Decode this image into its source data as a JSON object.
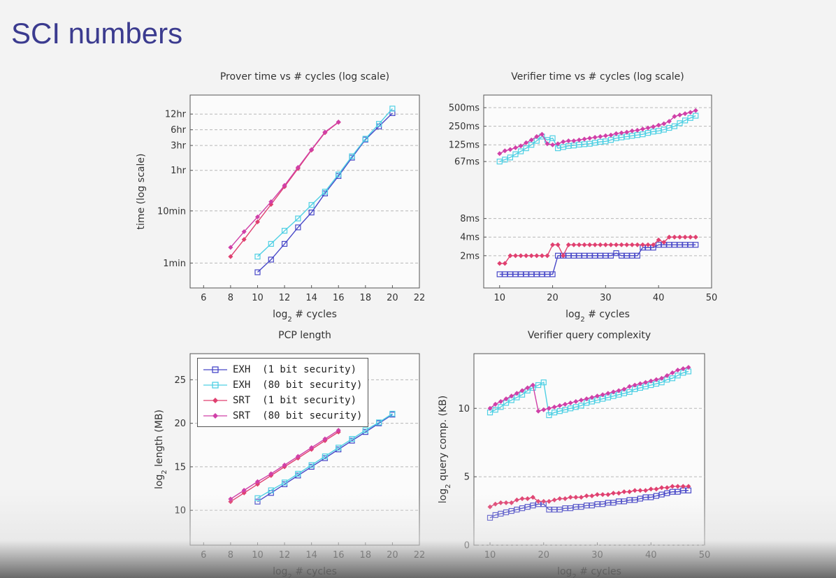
{
  "slide": {
    "title": "SCI numbers"
  },
  "legend": [
    {
      "key": "exh1",
      "label": "EXH  (1 bit security)",
      "color": "#4848c8",
      "marker": "square-open"
    },
    {
      "key": "exh80",
      "label": "EXH  (80 bit security)",
      "color": "#4fd0e4",
      "marker": "square-open"
    },
    {
      "key": "srt1",
      "label": "SRT  (1 bit security)",
      "color": "#e04070",
      "marker": "diamond"
    },
    {
      "key": "srt80",
      "label": "SRT  (80 bit security)",
      "color": "#d040a8",
      "marker": "diamond"
    }
  ],
  "chart_data": [
    {
      "id": "prover",
      "type": "line",
      "title": "Prover time vs # cycles (log scale)",
      "xlabel": "log2 # cycles",
      "ylabel": "time (log scale)",
      "xlim": [
        5,
        22
      ],
      "ylim_log_seconds": [
        20,
        100000
      ],
      "xticks": [
        6,
        8,
        10,
        12,
        14,
        16,
        18,
        20,
        22
      ],
      "yticks": [
        {
          "value": 60,
          "label": "1min"
        },
        {
          "value": 600,
          "label": "10min"
        },
        {
          "value": 3600,
          "label": "1hr"
        },
        {
          "value": 10800,
          "label": "3hr"
        },
        {
          "value": 21600,
          "label": "6hr"
        },
        {
          "value": 43200,
          "label": "12hr"
        }
      ],
      "series": [
        {
          "name": "EXH (1 bit security)",
          "key": "exh1",
          "x": [
            10,
            11,
            12,
            13,
            14,
            15,
            16,
            17,
            18,
            19,
            20
          ],
          "y": [
            40,
            70,
            140,
            290,
            560,
            1300,
            2800,
            6300,
            14000,
            25000,
            45000
          ]
        },
        {
          "name": "EXH (80 bit security)",
          "key": "exh80",
          "x": [
            10,
            11,
            12,
            13,
            14,
            15,
            16,
            17,
            18,
            19,
            20
          ],
          "y": [
            80,
            140,
            250,
            430,
            780,
            1400,
            3000,
            6700,
            14500,
            28000,
            55000
          ]
        },
        {
          "name": "SRT (1 bit security)",
          "key": "srt1",
          "x": [
            8,
            9,
            10,
            11,
            12,
            13,
            14,
            15,
            16
          ],
          "y": [
            80,
            170,
            370,
            800,
            1750,
            3900,
            8800,
            19000,
            30000
          ]
        },
        {
          "name": "SRT (80 bit security)",
          "key": "srt80",
          "x": [
            8,
            9,
            10,
            11,
            12,
            13,
            14,
            15,
            16
          ],
          "y": [
            120,
            240,
            460,
            900,
            1850,
            4100,
            9000,
            19500,
            30500
          ]
        }
      ]
    },
    {
      "id": "verifier",
      "type": "line",
      "title": "Verifier time vs # cycles (log scale)",
      "xlabel": "log2 # cycles",
      "ylabel": "",
      "xlim": [
        7,
        50
      ],
      "ylim_log_ms": [
        0.6,
        800
      ],
      "xticks": [
        10,
        20,
        30,
        40,
        50
      ],
      "yticks": [
        {
          "value": 2,
          "label": "2ms"
        },
        {
          "value": 4,
          "label": "4ms"
        },
        {
          "value": 8,
          "label": "8ms"
        },
        {
          "value": 67,
          "label": "67ms"
        },
        {
          "value": 125,
          "label": "125ms"
        },
        {
          "value": 250,
          "label": "250ms"
        },
        {
          "value": 500,
          "label": "500ms"
        }
      ],
      "series": [
        {
          "name": "EXH (1 bit security)",
          "key": "exh1",
          "x": [
            10,
            11,
            12,
            13,
            14,
            15,
            16,
            17,
            18,
            19,
            20,
            21,
            22,
            23,
            24,
            25,
            26,
            27,
            28,
            29,
            30,
            31,
            32,
            33,
            34,
            35,
            36,
            37,
            38,
            39,
            40,
            41,
            42,
            43,
            44,
            45,
            46,
            47
          ],
          "y": [
            1,
            1,
            1,
            1,
            1,
            1,
            1,
            1,
            1,
            1,
            1,
            2,
            2,
            2,
            2,
            2,
            2,
            2,
            2,
            2,
            2,
            2,
            2.2,
            2,
            2,
            2,
            2,
            2.7,
            2.7,
            2.7,
            3,
            3,
            3,
            3,
            3,
            3,
            3,
            3
          ]
        },
        {
          "name": "EXH (80 bit security)",
          "key": "exh80",
          "x": [
            10,
            11,
            12,
            13,
            14,
            15,
            16,
            17,
            18,
            19,
            20,
            21,
            22,
            23,
            24,
            25,
            26,
            27,
            28,
            29,
            30,
            31,
            32,
            33,
            34,
            35,
            36,
            37,
            38,
            39,
            40,
            41,
            42,
            43,
            44,
            45,
            46,
            47
          ],
          "y": [
            67,
            72,
            78,
            88,
            98,
            110,
            125,
            145,
            170,
            150,
            160,
            110,
            115,
            120,
            122,
            126,
            128,
            130,
            135,
            140,
            142,
            150,
            160,
            165,
            170,
            175,
            180,
            185,
            195,
            205,
            210,
            220,
            235,
            250,
            280,
            310,
            340,
            370
          ]
        },
        {
          "name": "SRT (1 bit security)",
          "key": "srt1",
          "x": [
            10,
            11,
            12,
            13,
            14,
            15,
            16,
            17,
            18,
            19,
            20,
            21,
            22,
            23,
            24,
            25,
            26,
            27,
            28,
            29,
            30,
            31,
            32,
            33,
            34,
            35,
            36,
            37,
            38,
            39,
            40,
            41,
            42,
            43,
            44,
            45,
            46,
            47
          ],
          "y": [
            1.5,
            1.5,
            2,
            2,
            2,
            2,
            2,
            2,
            2,
            2,
            3,
            3,
            2,
            3,
            3,
            3,
            3,
            3,
            3,
            3,
            3,
            3,
            3,
            3,
            3,
            3,
            3,
            3,
            3,
            3,
            3.6,
            3.3,
            4,
            4,
            4,
            4,
            4,
            4
          ]
        },
        {
          "name": "SRT (80 bit security)",
          "key": "srt80",
          "x": [
            10,
            11,
            12,
            13,
            14,
            15,
            16,
            17,
            18,
            19,
            20,
            21,
            22,
            23,
            24,
            25,
            26,
            27,
            28,
            29,
            30,
            31,
            32,
            33,
            34,
            35,
            36,
            37,
            38,
            39,
            40,
            41,
            42,
            43,
            44,
            45,
            46,
            47
          ],
          "y": [
            90,
            100,
            105,
            112,
            120,
            135,
            150,
            170,
            185,
            130,
            125,
            130,
            140,
            145,
            145,
            150,
            155,
            160,
            165,
            170,
            175,
            180,
            190,
            195,
            200,
            210,
            215,
            225,
            235,
            245,
            260,
            275,
            300,
            360,
            380,
            400,
            420,
            450
          ]
        }
      ]
    },
    {
      "id": "pcp",
      "type": "line",
      "title": "PCP length",
      "xlabel": "log2 # cycles",
      "ylabel": "log2 length (MB)",
      "xlim": [
        5,
        22
      ],
      "ylim": [
        6,
        28
      ],
      "xticks": [
        6,
        8,
        10,
        12,
        14,
        16,
        18,
        20,
        22
      ],
      "yticks": [
        {
          "value": 10,
          "label": "10"
        },
        {
          "value": 15,
          "label": "15"
        },
        {
          "value": 20,
          "label": "20"
        },
        {
          "value": 25,
          "label": "25"
        }
      ],
      "series": [
        {
          "name": "EXH (1 bit security)",
          "key": "exh1",
          "x": [
            10,
            11,
            12,
            13,
            14,
            15,
            16,
            17,
            18,
            19,
            20
          ],
          "y": [
            11,
            12,
            13,
            14,
            15,
            16,
            17,
            18,
            19,
            20,
            21
          ]
        },
        {
          "name": "EXH (80 bit security)",
          "key": "exh80",
          "x": [
            10,
            11,
            12,
            13,
            14,
            15,
            16,
            17,
            18,
            19,
            20
          ],
          "y": [
            11.4,
            12.3,
            13.2,
            14.2,
            15.2,
            16.2,
            17.2,
            18.2,
            19.2,
            20.1,
            21.1
          ]
        },
        {
          "name": "SRT (1 bit security)",
          "key": "srt1",
          "x": [
            8,
            9,
            10,
            11,
            12,
            13,
            14,
            15,
            16
          ],
          "y": [
            11,
            12,
            13,
            14,
            15,
            16,
            17,
            18,
            19
          ]
        },
        {
          "name": "SRT (80 bit security)",
          "key": "srt80",
          "x": [
            8,
            9,
            10,
            11,
            12,
            13,
            14,
            15,
            16
          ],
          "y": [
            11.3,
            12.3,
            13.3,
            14.2,
            15.2,
            16.2,
            17.2,
            18.2,
            19.2
          ]
        }
      ]
    },
    {
      "id": "query",
      "type": "line",
      "title": "Verifier query complexity",
      "xlabel": "log2 # cycles",
      "ylabel": "log2 query comp. (KB)",
      "xlim": [
        7,
        50
      ],
      "ylim": [
        0,
        14
      ],
      "xticks": [
        10,
        20,
        30,
        40,
        50
      ],
      "yticks": [
        {
          "value": 0,
          "label": "0"
        },
        {
          "value": 5,
          "label": "5"
        },
        {
          "value": 10,
          "label": "10"
        }
      ],
      "series": [
        {
          "name": "EXH (1 bit security)",
          "key": "exh1",
          "x": [
            10,
            11,
            12,
            13,
            14,
            15,
            16,
            17,
            18,
            19,
            20,
            21,
            22,
            23,
            24,
            25,
            26,
            27,
            28,
            29,
            30,
            31,
            32,
            33,
            34,
            35,
            36,
            37,
            38,
            39,
            40,
            41,
            42,
            43,
            44,
            45,
            46,
            47
          ],
          "y": [
            2.0,
            2.2,
            2.3,
            2.4,
            2.5,
            2.6,
            2.7,
            2.8,
            2.9,
            3.0,
            3.0,
            2.6,
            2.6,
            2.6,
            2.7,
            2.7,
            2.8,
            2.8,
            2.9,
            2.9,
            3.0,
            3.0,
            3.1,
            3.1,
            3.2,
            3.2,
            3.3,
            3.3,
            3.4,
            3.5,
            3.5,
            3.6,
            3.7,
            3.8,
            3.9,
            3.9,
            4.0,
            4.0
          ]
        },
        {
          "name": "EXH (80 bit security)",
          "key": "exh80",
          "x": [
            10,
            11,
            12,
            13,
            14,
            15,
            16,
            17,
            18,
            19,
            20,
            21,
            22,
            23,
            24,
            25,
            26,
            27,
            28,
            29,
            30,
            31,
            32,
            33,
            34,
            35,
            36,
            37,
            38,
            39,
            40,
            41,
            42,
            43,
            44,
            45,
            46,
            47
          ],
          "y": [
            9.7,
            9.9,
            10.1,
            10.4,
            10.6,
            10.8,
            11.0,
            11.3,
            11.5,
            11.7,
            11.9,
            9.5,
            9.7,
            9.8,
            9.9,
            10.0,
            10.1,
            10.2,
            10.4,
            10.5,
            10.6,
            10.7,
            10.8,
            10.9,
            11.0,
            11.1,
            11.2,
            11.4,
            11.5,
            11.6,
            11.7,
            11.8,
            11.9,
            12.1,
            12.2,
            12.4,
            12.6,
            12.7
          ]
        },
        {
          "name": "SRT (1 bit security)",
          "key": "srt1",
          "x": [
            10,
            11,
            12,
            13,
            14,
            15,
            16,
            17,
            18,
            19,
            20,
            21,
            22,
            23,
            24,
            25,
            26,
            27,
            28,
            29,
            30,
            31,
            32,
            33,
            34,
            35,
            36,
            37,
            38,
            39,
            40,
            41,
            42,
            43,
            44,
            45,
            46,
            47
          ],
          "y": [
            2.8,
            3.0,
            3.1,
            3.1,
            3.1,
            3.3,
            3.4,
            3.4,
            3.5,
            3.2,
            3.2,
            3.2,
            3.3,
            3.4,
            3.4,
            3.5,
            3.5,
            3.5,
            3.6,
            3.6,
            3.7,
            3.7,
            3.7,
            3.8,
            3.8,
            3.9,
            3.9,
            4.0,
            4.0,
            4.0,
            4.1,
            4.1,
            4.2,
            4.2,
            4.3,
            4.3,
            4.3,
            4.3
          ]
        },
        {
          "name": "SRT (80 bit security)",
          "key": "srt80",
          "x": [
            10,
            11,
            12,
            13,
            14,
            15,
            16,
            17,
            18,
            19,
            20,
            21,
            22,
            23,
            24,
            25,
            26,
            27,
            28,
            29,
            30,
            31,
            32,
            33,
            34,
            35,
            36,
            37,
            38,
            39,
            40,
            41,
            42,
            43,
            44,
            45,
            46,
            47
          ],
          "y": [
            10.0,
            10.3,
            10.5,
            10.7,
            10.9,
            11.1,
            11.3,
            11.5,
            11.7,
            9.8,
            9.9,
            10.0,
            10.1,
            10.2,
            10.3,
            10.4,
            10.5,
            10.6,
            10.7,
            10.8,
            10.9,
            11.0,
            11.1,
            11.2,
            11.3,
            11.4,
            11.6,
            11.7,
            11.8,
            11.9,
            12.0,
            12.1,
            12.2,
            12.4,
            12.6,
            12.8,
            12.9,
            13.0
          ]
        }
      ]
    }
  ]
}
